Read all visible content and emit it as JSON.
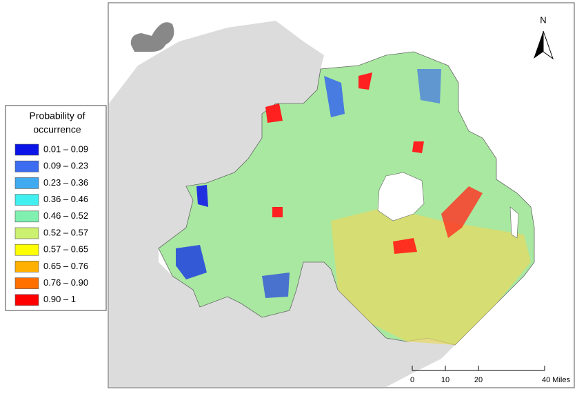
{
  "legend": {
    "title_lines": [
      "Probability of",
      "occurrence"
    ],
    "items": [
      {
        "label": "0.01 – 0.09",
        "color": "#0a14e6"
      },
      {
        "label": "0.09 – 0.23",
        "color": "#3c6cf0"
      },
      {
        "label": "0.23 – 0.36",
        "color": "#40aaf0"
      },
      {
        "label": "0.36 – 0.46",
        "color": "#40f0f0"
      },
      {
        "label": "0.46 – 0.52",
        "color": "#80f0b0"
      },
      {
        "label": "0.52 – 0.57",
        "color": "#ccf070"
      },
      {
        "label": "0.57 – 0.65",
        "color": "#ffff00"
      },
      {
        "label": "0.65 – 0.76",
        "color": "#ffb000"
      },
      {
        "label": "0.76 – 0.90",
        "color": "#ff7000"
      },
      {
        "label": "0.90 – 1",
        "color": "#ff0000"
      }
    ]
  },
  "north_arrow": "N",
  "scale_bar": {
    "ticks": [
      {
        "value": 0,
        "label": "0"
      },
      {
        "value": 10,
        "label": "10"
      },
      {
        "value": 20,
        "label": "20"
      },
      {
        "value": 40,
        "label": "40 Miles"
      }
    ]
  }
}
